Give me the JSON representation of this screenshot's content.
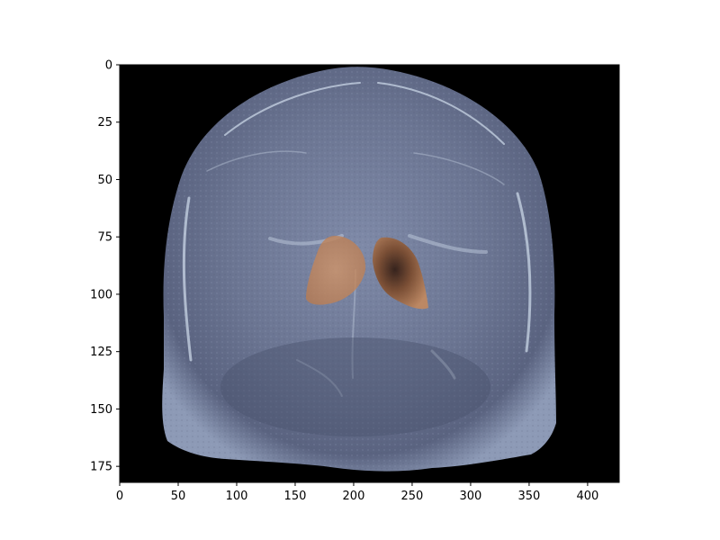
{
  "figure": {
    "background": "#ffffff",
    "image_background": "#000000",
    "colormap": "bone",
    "overlay_color": "#c98a5a",
    "overlay_dark": "#3a1a08"
  },
  "image": {
    "description_kind": "coronal MRI slice with overlay",
    "extent_x": [
      0,
      427
    ],
    "extent_y": [
      0,
      182
    ]
  },
  "axes": {
    "x_ticks": [
      {
        "value": 0,
        "label": "0"
      },
      {
        "value": 50,
        "label": "50"
      },
      {
        "value": 100,
        "label": "100"
      },
      {
        "value": 150,
        "label": "150"
      },
      {
        "value": 200,
        "label": "200"
      },
      {
        "value": 250,
        "label": "250"
      },
      {
        "value": 300,
        "label": "300"
      },
      {
        "value": 350,
        "label": "350"
      },
      {
        "value": 400,
        "label": "400"
      }
    ],
    "y_ticks": [
      {
        "value": 0,
        "label": "0"
      },
      {
        "value": 25,
        "label": "25"
      },
      {
        "value": 50,
        "label": "50"
      },
      {
        "value": 75,
        "label": "75"
      },
      {
        "value": 100,
        "label": "100"
      },
      {
        "value": 125,
        "label": "125"
      },
      {
        "value": 150,
        "label": "150"
      },
      {
        "value": 175,
        "label": "175"
      }
    ]
  }
}
